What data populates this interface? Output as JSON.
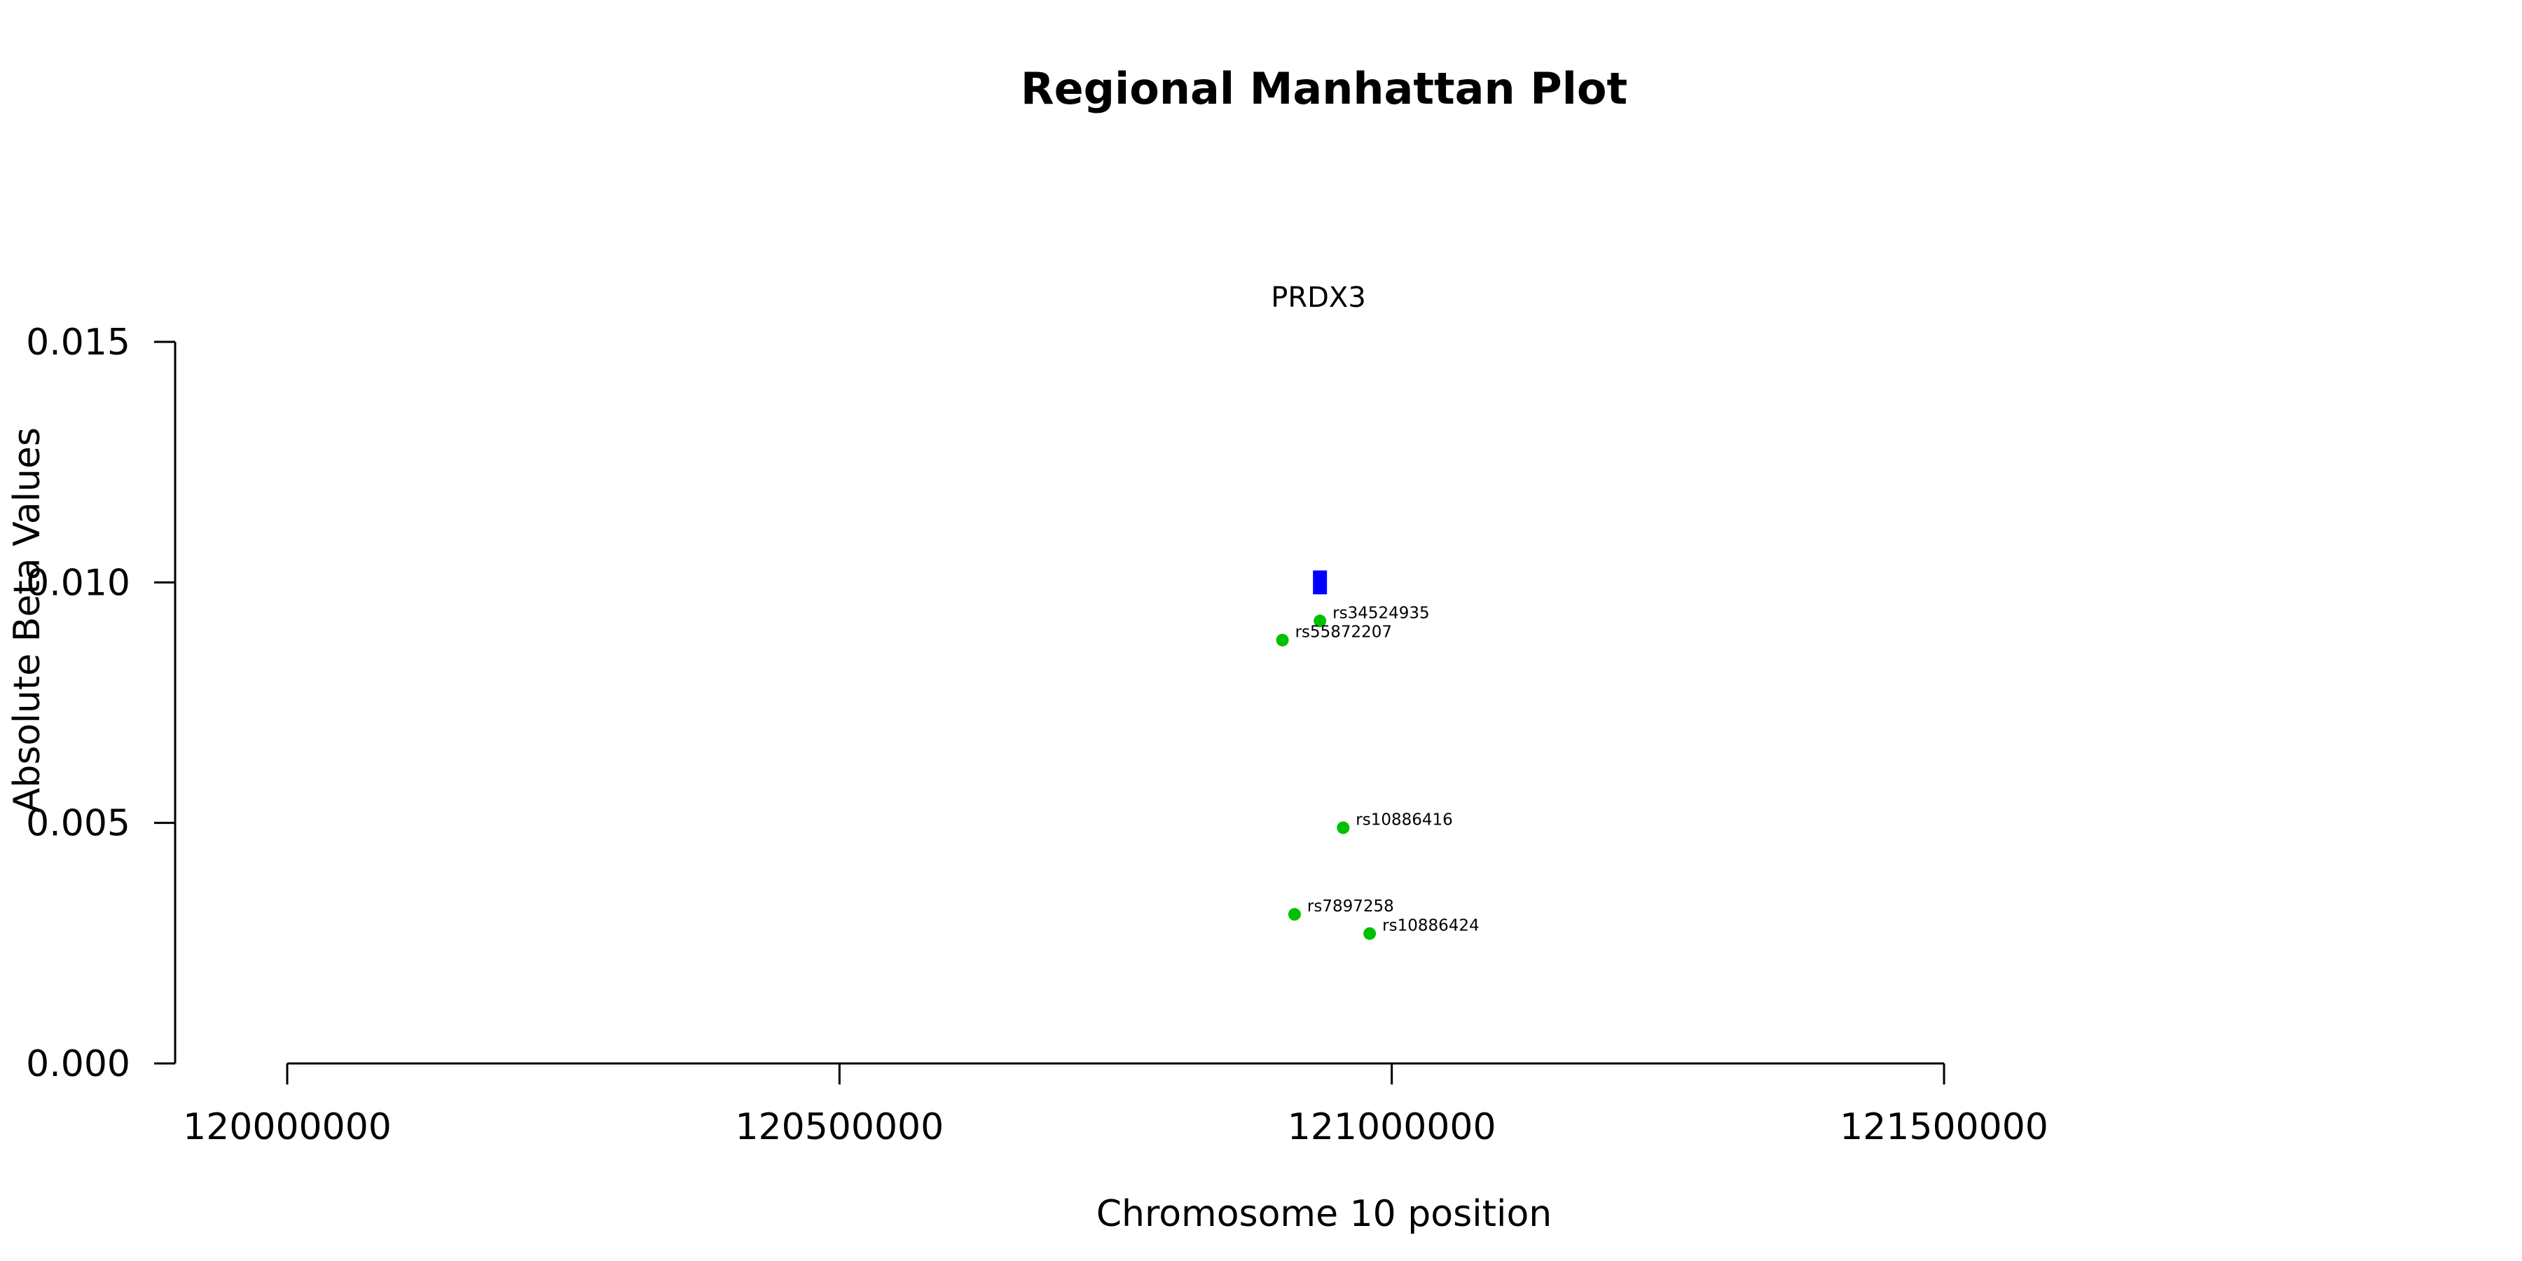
{
  "chart_data": {
    "type": "scatter",
    "title": "Regional Manhattan Plot",
    "gene_label": "PRDX3",
    "xlabel": "Chromosome 10 position",
    "ylabel": "Absolute Beta Values",
    "xlim": [
      120000000,
      121500000
    ],
    "ylim": [
      0.0,
      0.015
    ],
    "xticks": [
      120000000,
      120500000,
      121000000,
      121500000
    ],
    "xtick_labels": [
      "120000000",
      "120500000",
      "121000000",
      "121500000"
    ],
    "yticks": [
      0.0,
      0.005,
      0.01,
      0.015
    ],
    "ytick_labels": [
      "0.000",
      "0.005",
      "0.010",
      "0.015"
    ],
    "grid": false,
    "gene_marker": {
      "x": 120935000,
      "y": 0.01,
      "color": "#0000ff"
    },
    "points_color": "#00c000",
    "points": [
      {
        "label": "rs34524935",
        "x": 120935000,
        "y": 0.0092
      },
      {
        "label": "rs55872207",
        "x": 120901000,
        "y": 0.0088
      },
      {
        "label": "rs10886416",
        "x": 120956000,
        "y": 0.0049
      },
      {
        "label": "rs7897258",
        "x": 120912000,
        "y": 0.0031
      },
      {
        "label": "rs10886424",
        "x": 120980000,
        "y": 0.0027
      }
    ]
  }
}
